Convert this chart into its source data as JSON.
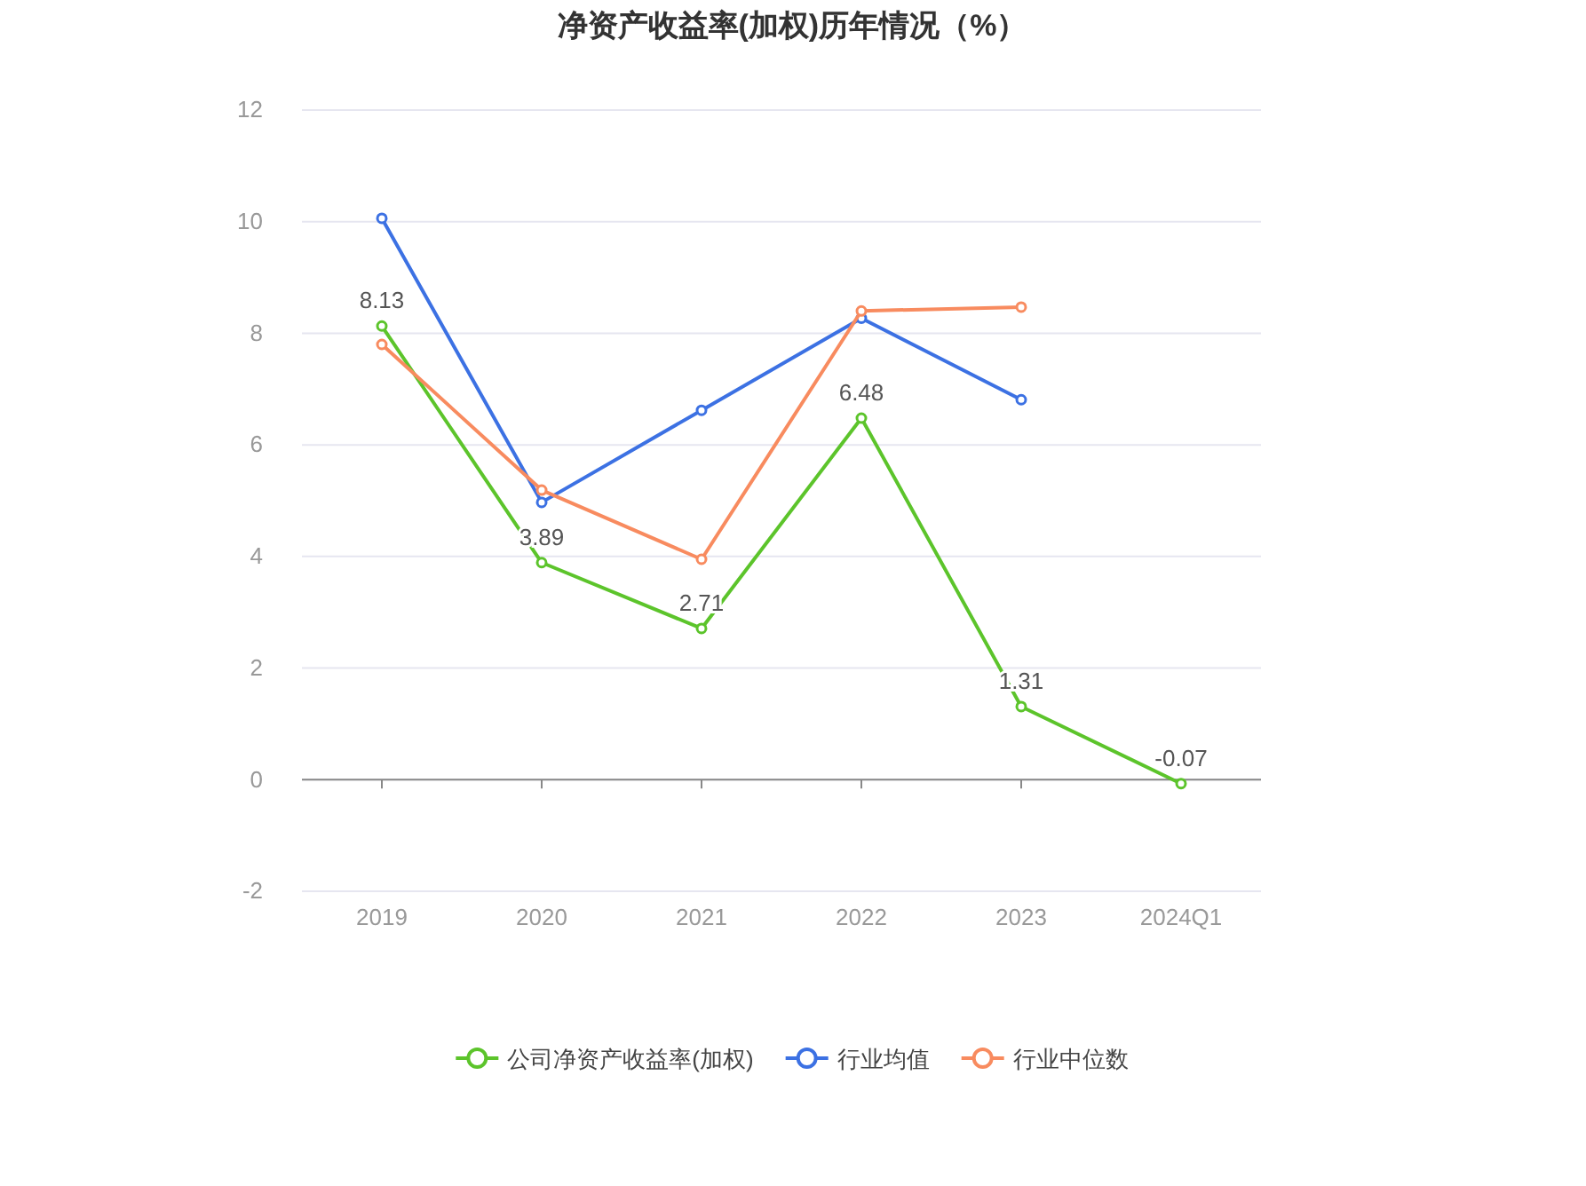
{
  "chart_data": {
    "type": "line",
    "title": "净资产收益率(加权)历年情况（%）",
    "categories": [
      "2019",
      "2020",
      "2021",
      "2022",
      "2023",
      "2024Q1"
    ],
    "series": [
      {
        "name": "公司净资产收益率(加权)",
        "color": "#5cc42b",
        "values": [
          8.13,
          3.89,
          2.71,
          6.48,
          1.31,
          -0.07
        ],
        "value_labels": [
          "8.13",
          "3.89",
          "2.71",
          "6.48",
          "1.31",
          "-0.07"
        ]
      },
      {
        "name": "行业均值",
        "color": "#3c71e3",
        "values": [
          10.06,
          4.97,
          6.62,
          8.27,
          6.81,
          null
        ]
      },
      {
        "name": "行业中位数",
        "color": "#f88b5f",
        "values": [
          7.8,
          5.19,
          3.95,
          8.4,
          8.47,
          null
        ]
      }
    ],
    "ylim": [
      -2,
      12
    ],
    "yticks": [
      -2,
      0,
      2,
      4,
      6,
      8,
      10,
      12
    ],
    "grid": "y",
    "legend": "bottom",
    "marker": "circle",
    "line_style": "solid"
  }
}
